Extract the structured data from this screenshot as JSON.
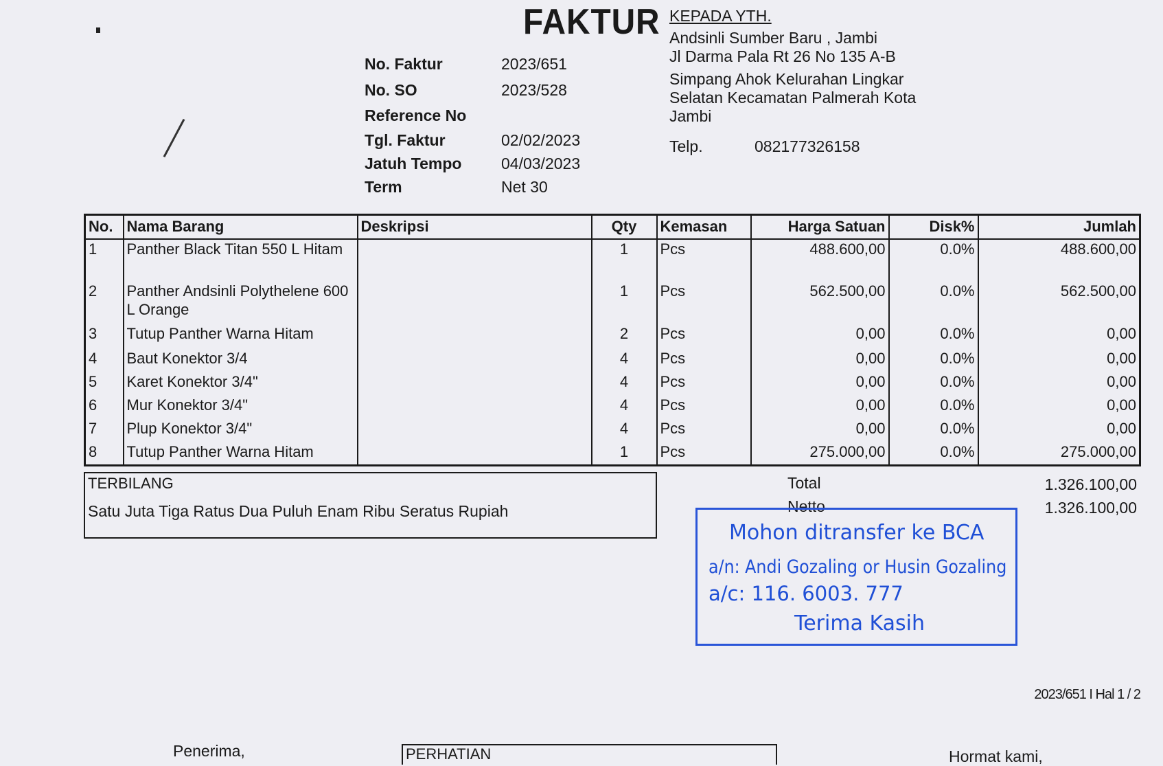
{
  "title": "FAKTUR",
  "meta": [
    {
      "label": "No. Faktur",
      "value": "2023/651"
    },
    {
      "label": "No. SO",
      "value": "2023/528"
    },
    {
      "label": "Reference No",
      "value": ""
    },
    {
      "label": "Tgl. Faktur",
      "value": "02/02/2023"
    },
    {
      "label": "Jatuh Tempo",
      "value": "04/03/2023"
    },
    {
      "label": "Term",
      "value": "Net 30"
    }
  ],
  "recipient": {
    "heading": "KEPADA YTH.",
    "lines": [
      "Andsinli Sumber Baru , Jambi",
      "Jl Darma Pala Rt 26 No 135 A-B",
      "Simpang Ahok Kelurahan Lingkar",
      "Selatan Kecamatan Palmerah Kota",
      "Jambi"
    ],
    "phone_label": "Telp.",
    "phone": "082177326158"
  },
  "table": {
    "headers": [
      "No.",
      "Nama Barang",
      "Deskripsi",
      "Qty",
      "Kemasan",
      "Harga Satuan",
      "Disk%",
      "Jumlah"
    ],
    "rows": [
      [
        "1",
        "Panther Black Titan 550 L Hitam",
        "",
        "1",
        "Pcs",
        "488.600,00",
        "0.0%",
        "488.600,00"
      ],
      [
        "2",
        "Panther Andsinli Polythelene 600 L Orange",
        "",
        "1",
        "Pcs",
        "562.500,00",
        "0.0%",
        "562.500,00"
      ],
      [
        "3",
        "Tutup Panther Warna Hitam",
        "",
        "2",
        "Pcs",
        "0,00",
        "0.0%",
        "0,00"
      ],
      [
        "4",
        "Baut Konektor 3/4",
        "",
        "4",
        "Pcs",
        "0,00",
        "0.0%",
        "0,00"
      ],
      [
        "5",
        "Karet Konektor 3/4\"",
        "",
        "4",
        "Pcs",
        "0,00",
        "0.0%",
        "0,00"
      ],
      [
        "6",
        "Mur Konektor 3/4\"",
        "",
        "4",
        "Pcs",
        "0,00",
        "0.0%",
        "0,00"
      ],
      [
        "7",
        "Plup Konektor 3/4\"",
        "",
        "4",
        "Pcs",
        "0,00",
        "0.0%",
        "0,00"
      ],
      [
        "8",
        "Tutup Panther Warna Hitam",
        "",
        "1",
        "Pcs",
        "275.000,00",
        "0.0%",
        "275.000,00"
      ]
    ]
  },
  "terbilang": {
    "label": "TERBILANG",
    "text": "Satu Juta Tiga Ratus Dua Puluh Enam Ribu Seratus Rupiah"
  },
  "totals": {
    "total_label": "Total",
    "total": "1.326.100,00",
    "netto_label": "Netto",
    "netto": "1.326.100,00"
  },
  "stamp": {
    "line1": "Mohon ditransfer ke BCA",
    "line2": "a/n: Andi Gozaling or Husin Gozaling",
    "line3": "a/c: 116. 6003. 777",
    "line4": "Terima Kasih",
    "color": "#1f4fd6"
  },
  "footer": {
    "page": "2023/651 I Hal 1 / 2",
    "receiver": "Penerima,",
    "notice": "PERHATIAN",
    "regards": "Hormat kami,"
  }
}
